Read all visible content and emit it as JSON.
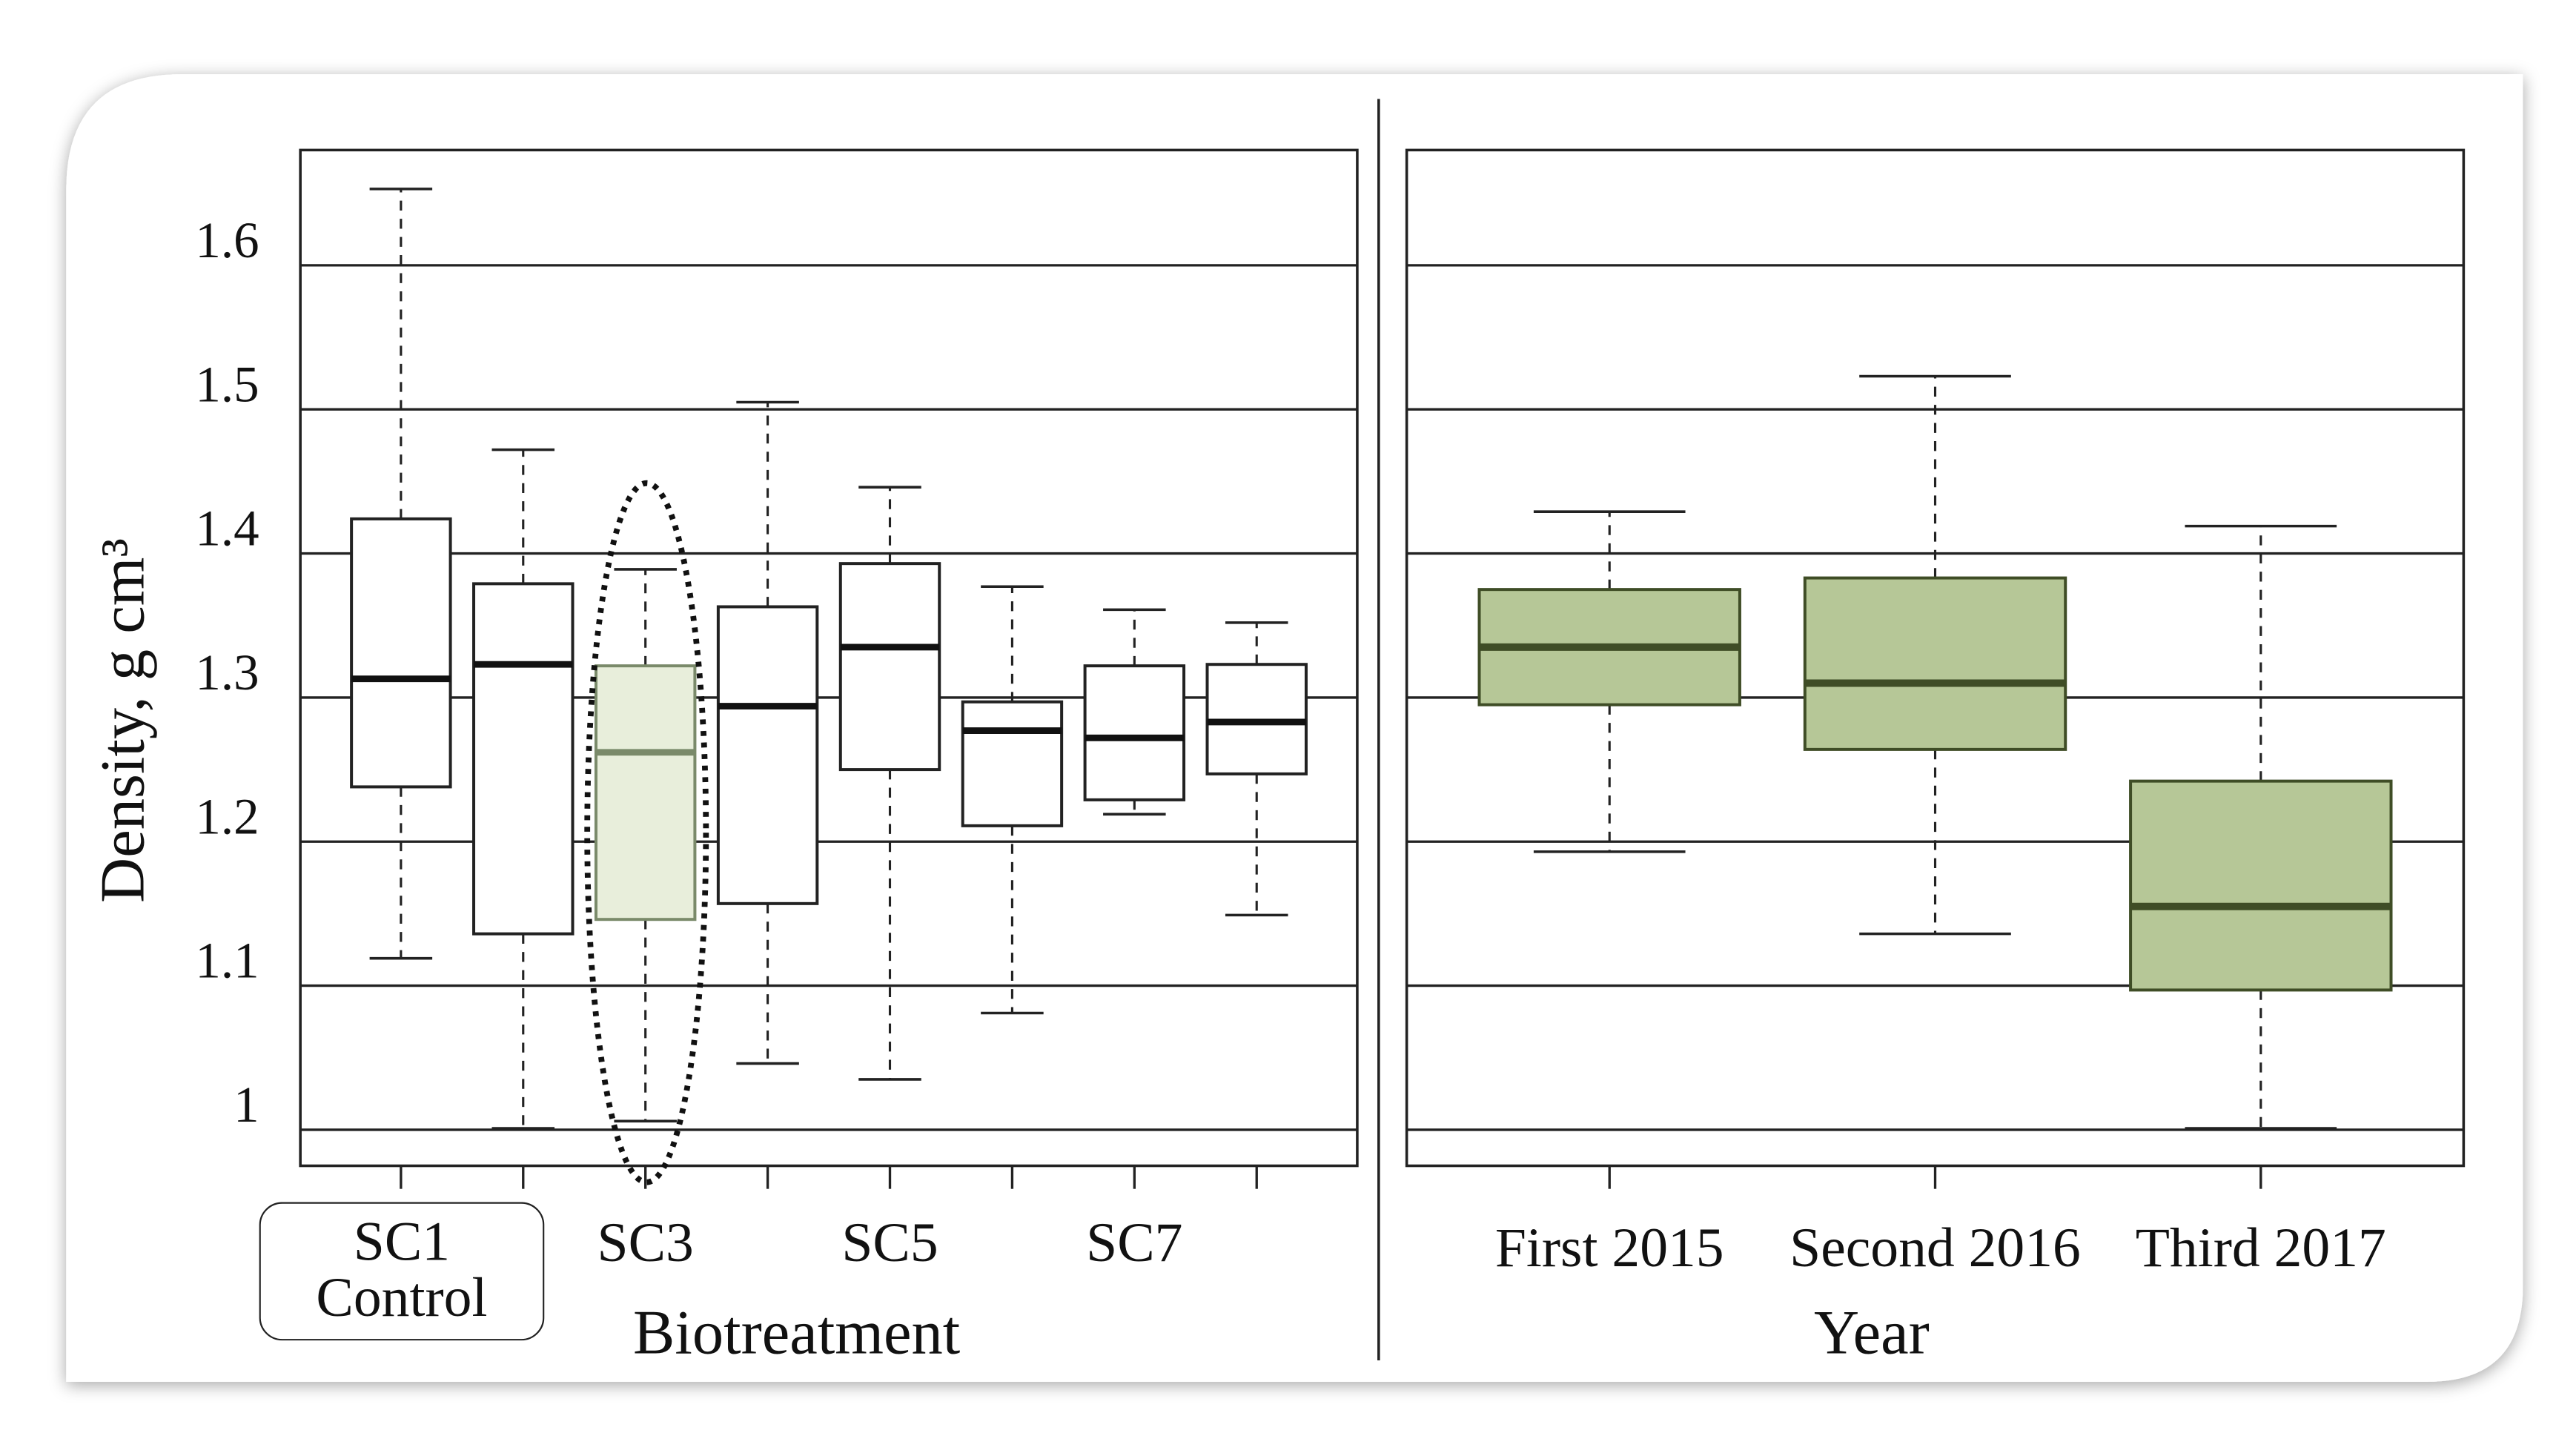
{
  "chart_data": [
    {
      "type": "box",
      "categories": [
        "SC1\nControl",
        null,
        "SC3",
        null,
        "SC5",
        null,
        "SC7",
        null
      ],
      "xlabel": "Biotreatment",
      "ylabel": "Density, g cm³",
      "ylim": [
        0.975,
        1.68
      ],
      "yticks": [
        1.0,
        1.1,
        1.2,
        1.3,
        1.4,
        1.5,
        1.6
      ],
      "grid": true,
      "fill": "#ffffff",
      "color": "#111111",
      "boxes": [
        {
          "min": 1.119,
          "q1": 1.238,
          "median": 1.313,
          "q3": 1.424,
          "max": 1.653
        },
        {
          "min": 1.001,
          "q1": 1.136,
          "median": 1.323,
          "q3": 1.379,
          "max": 1.472
        },
        {
          "min": 1.006,
          "q1": 1.146,
          "median": 1.262,
          "q3": 1.322,
          "max": 1.389,
          "fill": "#e8eedb",
          "color": "#7a8a6a"
        },
        {
          "min": 1.046,
          "q1": 1.157,
          "median": 1.294,
          "q3": 1.363,
          "max": 1.505
        },
        {
          "min": 1.035,
          "q1": 1.25,
          "median": 1.335,
          "q3": 1.393,
          "max": 1.446
        },
        {
          "min": 1.081,
          "q1": 1.211,
          "median": 1.277,
          "q3": 1.297,
          "max": 1.377
        },
        {
          "min": 1.219,
          "q1": 1.229,
          "median": 1.272,
          "q3": 1.322,
          "max": 1.361
        },
        {
          "min": 1.149,
          "q1": 1.247,
          "median": 1.283,
          "q3": 1.323,
          "max": 1.352
        }
      ]
    },
    {
      "type": "box",
      "categories": [
        "First 2015",
        "Second 2016",
        "Third 2017"
      ],
      "xlabel": "Year",
      "ylim": [
        0.975,
        1.68
      ],
      "yticks": [
        1.0,
        1.1,
        1.2,
        1.3,
        1.4,
        1.5,
        1.6
      ],
      "grid": true,
      "fill": "#b6c797",
      "color": "#3f4d26",
      "boxes": [
        {
          "min": 1.193,
          "q1": 1.295,
          "median": 1.335,
          "q3": 1.375,
          "max": 1.429
        },
        {
          "min": 1.136,
          "q1": 1.264,
          "median": 1.31,
          "q3": 1.383,
          "max": 1.523
        },
        {
          "min": 1.001,
          "q1": 1.097,
          "median": 1.155,
          "q3": 1.242,
          "max": 1.419
        }
      ]
    }
  ]
}
